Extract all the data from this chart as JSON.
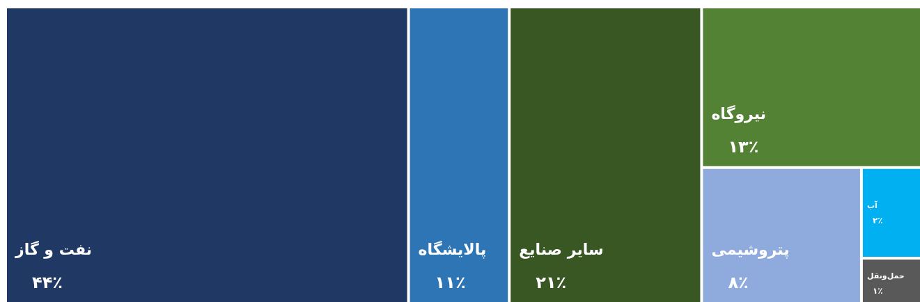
{
  "chart_data": {
    "type": "other",
    "categories": [
      "نفت و گاز",
      "پالایشگاه",
      "سایر صنایع",
      "نیروگاه",
      "پتروشیمی",
      "آب",
      "حمل‌ونقل"
    ],
    "values": [
      44,
      11,
      21,
      13,
      8,
      2,
      1
    ],
    "value_labels": [
      "۴۴٪",
      "۱۱٪",
      "۲۱٪",
      "۱۳٪",
      "۸٪",
      "۲٪",
      "۱٪"
    ],
    "colors": [
      "#203864",
      "#2e75b6",
      "#385723",
      "#548235",
      "#8faadc",
      "#00b0f0",
      "#595959"
    ]
  }
}
